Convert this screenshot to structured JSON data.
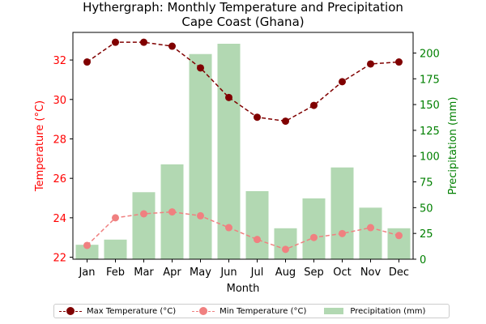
{
  "chart_data": {
    "type": "bar+line",
    "title_line1": "Hythergraph: Monthly Temperature and Precipitation",
    "title_line2": "Cape Coast (Ghana)",
    "xlabel": "Month",
    "ylabel_left": "Temperature (°C)",
    "ylabel_right": "Precipitation (mm)",
    "categories": [
      "Jan",
      "Feb",
      "Mar",
      "Apr",
      "May",
      "Jun",
      "Jul",
      "Aug",
      "Sep",
      "Oct",
      "Nov",
      "Dec"
    ],
    "ylim_left": [
      21.9,
      33.4
    ],
    "yticks_left": [
      22,
      24,
      26,
      28,
      30,
      32
    ],
    "ylim_right": [
      0,
      220
    ],
    "yticks_right": [
      0,
      25,
      50,
      75,
      100,
      125,
      150,
      175,
      200
    ],
    "series": [
      {
        "name": "Max Temperature (°C)",
        "kind": "line",
        "axis": "left",
        "color": "#800000",
        "values": [
          31.9,
          32.9,
          32.9,
          32.7,
          31.6,
          30.1,
          29.1,
          28.9,
          29.7,
          30.9,
          31.8,
          31.9
        ]
      },
      {
        "name": "Min Temperature (°C)",
        "kind": "line",
        "axis": "left",
        "color": "#f08080",
        "values": [
          22.6,
          24.0,
          24.2,
          24.3,
          24.1,
          23.5,
          22.9,
          22.4,
          23.0,
          23.2,
          23.5,
          23.1
        ]
      },
      {
        "name": "Precipitation (mm)",
        "kind": "bar",
        "axis": "right",
        "color": "#b2d8b2",
        "values": [
          14,
          19,
          65,
          92,
          199,
          209,
          66,
          30,
          59,
          89,
          50,
          30
        ]
      }
    ],
    "colors": {
      "left_axis": "#ff0000",
      "right_axis": "#008000"
    },
    "legend_location": "bottom-center"
  }
}
